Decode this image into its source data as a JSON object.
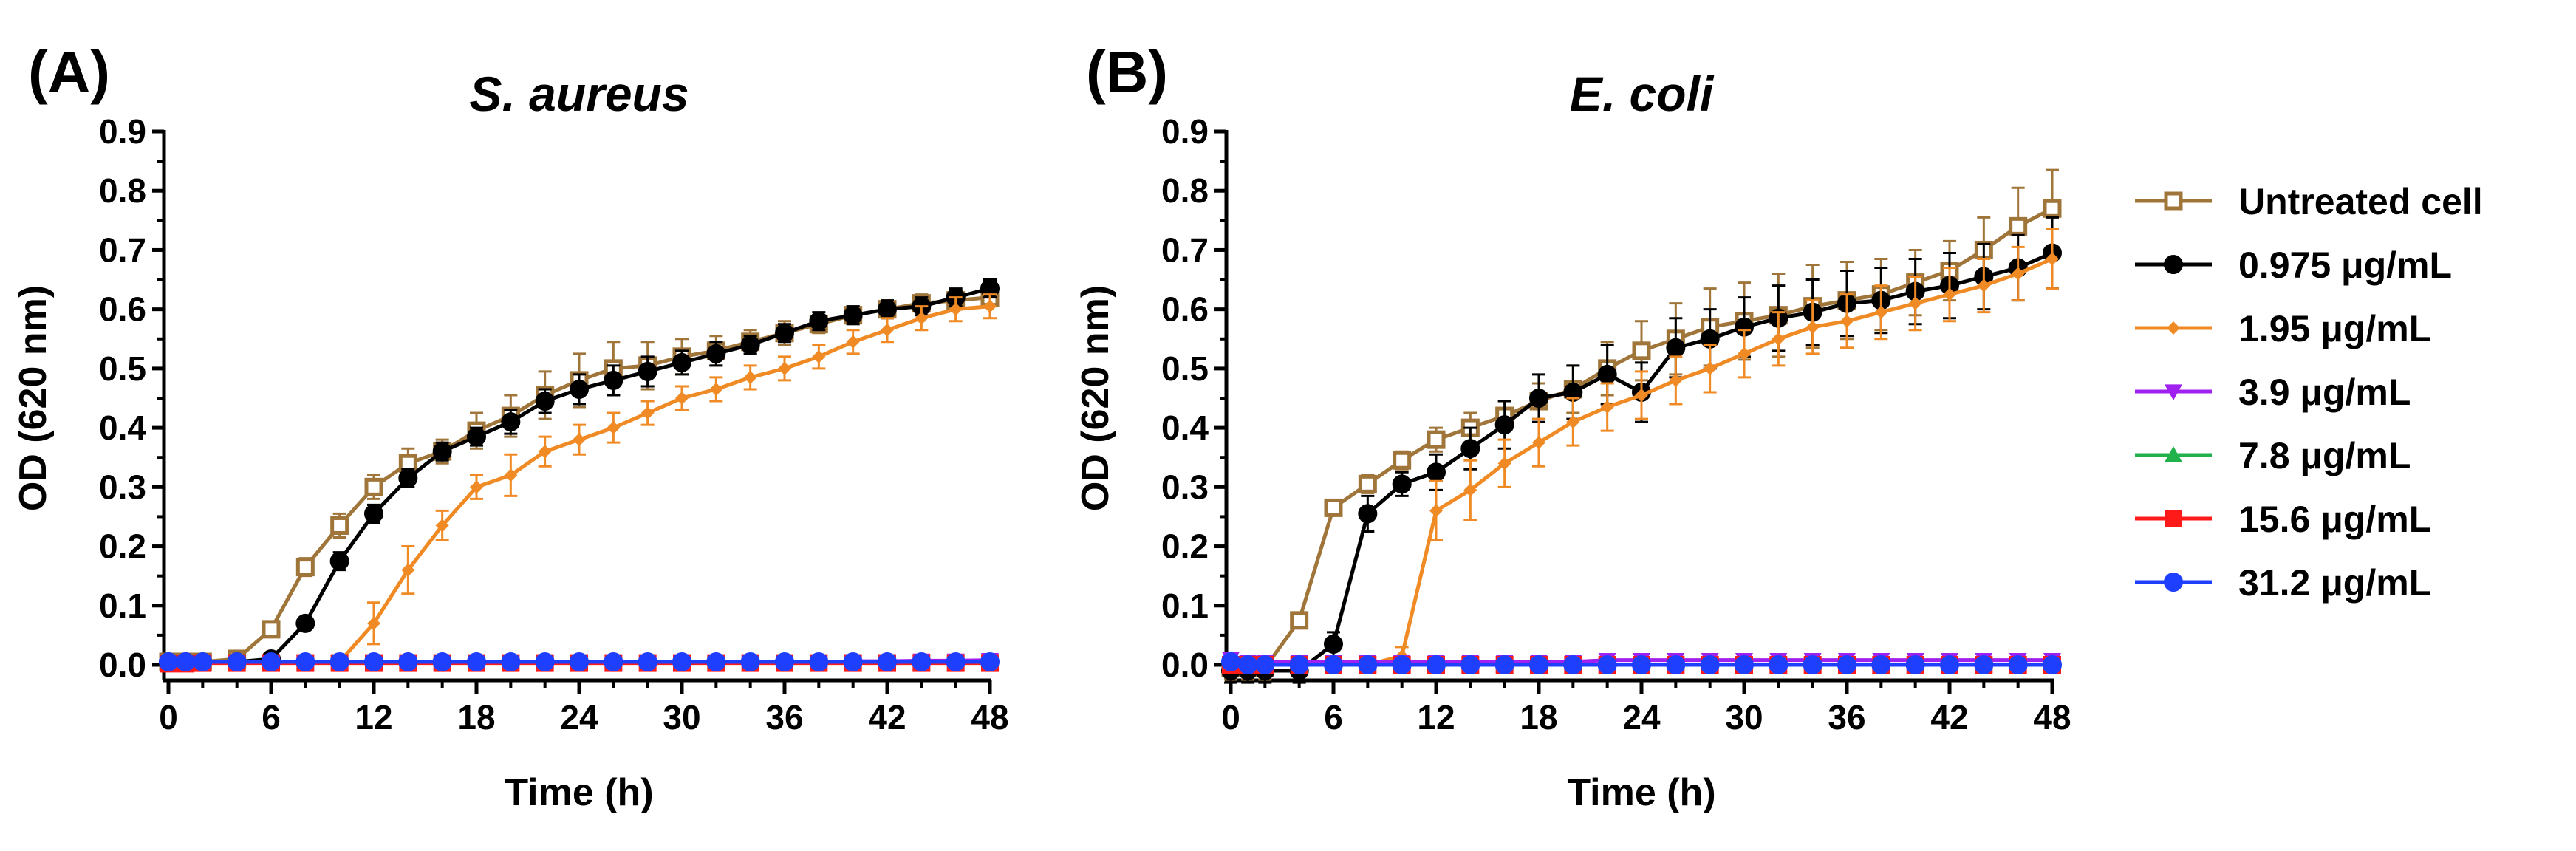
{
  "panels": [
    {
      "letter": "(A)"
    },
    {
      "letter": "(B)"
    }
  ],
  "legend": {
    "entries": [
      "Untreated cell",
      "0.975 μg/mL",
      "1.95 μg/mL",
      "3.9 μg/mL",
      "7.8 μg/mL",
      "15.6 μg/mL",
      "31.2 μg/mL"
    ]
  },
  "chart_data": [
    {
      "type": "line",
      "title": "S. aureus",
      "xlabel": "Time (h)",
      "ylabel": "OD (620 nm)",
      "xlim": [
        0,
        48
      ],
      "ylim": [
        0,
        0.9
      ],
      "xticks": [
        0,
        6,
        12,
        18,
        24,
        30,
        36,
        42,
        48
      ],
      "yticks": [
        0.0,
        0.1,
        0.2,
        0.3,
        0.4,
        0.5,
        0.6,
        0.7,
        0.8,
        0.9
      ],
      "grid": false,
      "legend_position": "right",
      "x": [
        0,
        1,
        2,
        4,
        6,
        8,
        10,
        12,
        14,
        16,
        18,
        20,
        22,
        24,
        26,
        28,
        30,
        32,
        34,
        36,
        38,
        40,
        42,
        44,
        46,
        48
      ],
      "series": [
        {
          "name": "Untreated cell",
          "color": "#A0753A",
          "marker": "square-open",
          "values": [
            0.005,
            0.005,
            0.005,
            0.01,
            0.06,
            0.165,
            0.235,
            0.3,
            0.34,
            0.36,
            0.395,
            0.42,
            0.455,
            0.48,
            0.5,
            0.505,
            0.52,
            0.53,
            0.545,
            0.56,
            0.575,
            0.59,
            0.6,
            0.61,
            0.615,
            0.62
          ],
          "errors": [
            0.003,
            0.003,
            0.003,
            0.005,
            0.01,
            0.015,
            0.02,
            0.02,
            0.025,
            0.02,
            0.03,
            0.035,
            0.04,
            0.045,
            0.045,
            0.04,
            0.03,
            0.025,
            0.02,
            0.02,
            0.015,
            0.015,
            0.015,
            0.015,
            0.015,
            0.015
          ]
        },
        {
          "name": "0.975 μg/mL",
          "color": "#000000",
          "marker": "circle",
          "values": [
            0.005,
            0.005,
            0.005,
            0.005,
            0.01,
            0.07,
            0.175,
            0.255,
            0.315,
            0.36,
            0.385,
            0.41,
            0.445,
            0.465,
            0.48,
            0.495,
            0.51,
            0.525,
            0.54,
            0.56,
            0.58,
            0.59,
            0.6,
            0.605,
            0.62,
            0.635
          ],
          "errors": [
            0.003,
            0.003,
            0.003,
            0.003,
            0.005,
            0.01,
            0.015,
            0.015,
            0.015,
            0.015,
            0.015,
            0.02,
            0.02,
            0.025,
            0.025,
            0.025,
            0.02,
            0.02,
            0.015,
            0.015,
            0.015,
            0.015,
            0.015,
            0.015,
            0.015,
            0.015
          ]
        },
        {
          "name": "1.95 μg/mL",
          "color": "#F08A24",
          "marker": "diamond",
          "values": [
            0.005,
            0.005,
            0.005,
            0.005,
            0.005,
            0.005,
            0.005,
            0.07,
            0.16,
            0.235,
            0.3,
            0.32,
            0.36,
            0.38,
            0.4,
            0.425,
            0.45,
            0.465,
            0.485,
            0.5,
            0.52,
            0.545,
            0.565,
            0.585,
            0.6,
            0.605
          ],
          "errors": [
            0.003,
            0.003,
            0.003,
            0.003,
            0.003,
            0.003,
            0.005,
            0.035,
            0.04,
            0.025,
            0.02,
            0.035,
            0.025,
            0.025,
            0.025,
            0.02,
            0.02,
            0.02,
            0.02,
            0.02,
            0.02,
            0.02,
            0.02,
            0.02,
            0.02,
            0.02
          ]
        },
        {
          "name": "3.9 μg/mL",
          "color": "#A020F0",
          "marker": "triangle-down",
          "values": [
            0.003,
            0.003,
            0.004,
            0.004,
            0.004,
            0.004,
            0.005,
            0.005,
            0.005,
            0.005,
            0.005,
            0.005,
            0.005,
            0.005,
            0.005,
            0.005,
            0.005,
            0.005,
            0.005,
            0.005,
            0.005,
            0.006,
            0.006,
            0.007,
            0.007,
            0.008
          ],
          "errors": [
            0.002,
            0.002,
            0.002,
            0.002,
            0.002,
            0.002,
            0.002,
            0.002,
            0.002,
            0.002,
            0.002,
            0.002,
            0.002,
            0.002,
            0.002,
            0.002,
            0.002,
            0.002,
            0.002,
            0.002,
            0.002,
            0.002,
            0.002,
            0.002,
            0.003,
            0.003
          ]
        },
        {
          "name": "7.8 μg/mL",
          "color": "#22B24C",
          "marker": "triangle-up",
          "values": [
            0.004,
            0.004,
            0.004,
            0.004,
            0.004,
            0.004,
            0.004,
            0.004,
            0.004,
            0.004,
            0.004,
            0.004,
            0.004,
            0.004,
            0.004,
            0.004,
            0.004,
            0.004,
            0.004,
            0.004,
            0.004,
            0.004,
            0.004,
            0.004,
            0.004,
            0.004
          ],
          "errors": [
            0.002,
            0.002,
            0.002,
            0.002,
            0.002,
            0.002,
            0.002,
            0.002,
            0.002,
            0.002,
            0.002,
            0.002,
            0.002,
            0.002,
            0.002,
            0.002,
            0.002,
            0.002,
            0.002,
            0.002,
            0.002,
            0.002,
            0.002,
            0.002,
            0.002,
            0.002
          ]
        },
        {
          "name": "15.6 μg/mL",
          "color": "#FF1A1A",
          "marker": "square",
          "values": [
            0.002,
            0.002,
            0.003,
            0.003,
            0.003,
            0.003,
            0.003,
            0.003,
            0.003,
            0.003,
            0.003,
            0.003,
            0.003,
            0.003,
            0.003,
            0.003,
            0.003,
            0.003,
            0.003,
            0.003,
            0.003,
            0.003,
            0.003,
            0.003,
            0.003,
            0.003
          ],
          "errors": [
            0.002,
            0.002,
            0.002,
            0.002,
            0.002,
            0.002,
            0.002,
            0.002,
            0.002,
            0.002,
            0.002,
            0.002,
            0.002,
            0.002,
            0.002,
            0.002,
            0.002,
            0.002,
            0.002,
            0.002,
            0.002,
            0.002,
            0.002,
            0.002,
            0.002,
            0.002
          ]
        },
        {
          "name": "31.2 μg/mL",
          "color": "#1F3FFF",
          "marker": "circle",
          "values": [
            0.005,
            0.005,
            0.005,
            0.005,
            0.005,
            0.005,
            0.005,
            0.005,
            0.005,
            0.005,
            0.005,
            0.005,
            0.005,
            0.005,
            0.005,
            0.005,
            0.005,
            0.005,
            0.005,
            0.005,
            0.005,
            0.005,
            0.005,
            0.005,
            0.005,
            0.005
          ],
          "errors": [
            0.003,
            0.003,
            0.003,
            0.003,
            0.003,
            0.003,
            0.003,
            0.003,
            0.003,
            0.003,
            0.003,
            0.003,
            0.003,
            0.003,
            0.003,
            0.003,
            0.003,
            0.003,
            0.003,
            0.003,
            0.003,
            0.003,
            0.003,
            0.003,
            0.003,
            0.003
          ]
        }
      ]
    },
    {
      "type": "line",
      "title": "E. coli",
      "xlabel": "Time (h)",
      "ylabel": "OD (620 nm)",
      "xlim": [
        0,
        48
      ],
      "ylim": [
        0,
        0.9
      ],
      "xticks": [
        0,
        6,
        12,
        18,
        24,
        30,
        36,
        42,
        48
      ],
      "yticks": [
        0.0,
        0.1,
        0.2,
        0.3,
        0.4,
        0.5,
        0.6,
        0.7,
        0.8,
        0.9
      ],
      "grid": false,
      "legend_position": "right",
      "x": [
        0,
        1,
        2,
        4,
        6,
        8,
        10,
        12,
        14,
        16,
        18,
        20,
        22,
        24,
        26,
        28,
        30,
        32,
        34,
        36,
        38,
        40,
        42,
        44,
        46,
        48
      ],
      "series": [
        {
          "name": "Untreated cell",
          "color": "#A0753A",
          "marker": "square-open",
          "values": [
            -0.005,
            -0.005,
            -0.005,
            0.075,
            0.265,
            0.305,
            0.345,
            0.38,
            0.4,
            0.42,
            0.445,
            0.465,
            0.5,
            0.53,
            0.55,
            0.57,
            0.58,
            0.59,
            0.605,
            0.615,
            0.625,
            0.645,
            0.665,
            0.7,
            0.74,
            0.77
          ],
          "errors": [
            0.02,
            0.02,
            0.02,
            0.01,
            0.01,
            0.015,
            0.015,
            0.02,
            0.025,
            0.025,
            0.03,
            0.04,
            0.045,
            0.05,
            0.06,
            0.065,
            0.065,
            0.07,
            0.07,
            0.065,
            0.06,
            0.055,
            0.05,
            0.055,
            0.065,
            0.065
          ]
        },
        {
          "name": "0.975 μg/mL",
          "color": "#000000",
          "marker": "circle",
          "values": [
            -0.01,
            -0.01,
            -0.01,
            -0.01,
            0.035,
            0.255,
            0.305,
            0.325,
            0.365,
            0.405,
            0.45,
            0.46,
            0.49,
            0.46,
            0.535,
            0.55,
            0.57,
            0.585,
            0.595,
            0.61,
            0.615,
            0.63,
            0.64,
            0.655,
            0.67,
            0.695
          ],
          "errors": [
            0.02,
            0.02,
            0.02,
            0.02,
            0.02,
            0.03,
            0.02,
            0.03,
            0.035,
            0.04,
            0.04,
            0.045,
            0.05,
            0.05,
            0.05,
            0.05,
            0.05,
            0.055,
            0.055,
            0.055,
            0.055,
            0.055,
            0.055,
            0.055,
            0.055,
            0.06
          ]
        },
        {
          "name": "1.95 μg/mL",
          "color": "#F08A24",
          "marker": "diamond",
          "values": [
            0.0,
            0.0,
            0.0,
            0.0,
            0.0,
            0.0,
            0.015,
            0.26,
            0.295,
            0.34,
            0.375,
            0.41,
            0.435,
            0.455,
            0.48,
            0.5,
            0.525,
            0.55,
            0.57,
            0.58,
            0.595,
            0.61,
            0.625,
            0.64,
            0.66,
            0.685
          ],
          "errors": [
            0.005,
            0.005,
            0.005,
            0.005,
            0.005,
            0.005,
            0.015,
            0.05,
            0.05,
            0.04,
            0.04,
            0.04,
            0.04,
            0.04,
            0.04,
            0.04,
            0.04,
            0.045,
            0.045,
            0.045,
            0.045,
            0.045,
            0.045,
            0.045,
            0.045,
            0.05
          ]
        },
        {
          "name": "3.9 μg/mL",
          "color": "#A020F0",
          "marker": "triangle-down",
          "values": [
            0.01,
            0.005,
            0.005,
            0.005,
            0.005,
            0.005,
            0.005,
            0.005,
            0.005,
            0.005,
            0.005,
            0.005,
            0.008,
            0.008,
            0.008,
            0.008,
            0.008,
            0.008,
            0.008,
            0.008,
            0.008,
            0.008,
            0.008,
            0.008,
            0.008,
            0.008
          ],
          "errors": [
            0.01,
            0.005,
            0.005,
            0.005,
            0.005,
            0.005,
            0.005,
            0.005,
            0.005,
            0.005,
            0.005,
            0.005,
            0.005,
            0.005,
            0.005,
            0.005,
            0.005,
            0.005,
            0.005,
            0.005,
            0.005,
            0.005,
            0.005,
            0.005,
            0.005,
            0.005
          ]
        },
        {
          "name": "7.8 μg/mL",
          "color": "#22B24C",
          "marker": "triangle-up",
          "values": [
            0.0,
            0.0,
            0.0,
            0.0,
            0.0,
            0.0,
            0.0,
            0.0,
            0.0,
            0.0,
            0.0,
            0.0,
            0.0,
            0.0,
            0.0,
            0.0,
            0.0,
            0.0,
            0.0,
            0.0,
            0.0,
            0.0,
            0.0,
            0.0,
            0.0,
            0.0
          ],
          "errors": [
            0.003,
            0.003,
            0.003,
            0.003,
            0.003,
            0.003,
            0.003,
            0.003,
            0.003,
            0.003,
            0.003,
            0.003,
            0.003,
            0.003,
            0.003,
            0.003,
            0.003,
            0.003,
            0.003,
            0.003,
            0.003,
            0.003,
            0.003,
            0.003,
            0.003,
            0.003
          ]
        },
        {
          "name": "15.6 μg/mL",
          "color": "#FF1A1A",
          "marker": "square",
          "values": [
            0.0,
            0.0,
            0.0,
            0.0,
            0.0,
            0.0,
            0.0,
            0.0,
            0.0,
            0.0,
            0.0,
            0.0,
            0.0,
            0.0,
            0.0,
            0.0,
            0.0,
            0.0,
            0.0,
            0.0,
            0.0,
            0.0,
            0.0,
            0.0,
            0.0,
            0.0
          ],
          "errors": [
            0.003,
            0.003,
            0.003,
            0.003,
            0.003,
            0.003,
            0.003,
            0.003,
            0.003,
            0.003,
            0.003,
            0.003,
            0.003,
            0.003,
            0.003,
            0.003,
            0.003,
            0.003,
            0.003,
            0.003,
            0.003,
            0.003,
            0.003,
            0.003,
            0.003,
            0.003
          ]
        },
        {
          "name": "31.2 μg/mL",
          "color": "#1F3FFF",
          "marker": "circle",
          "values": [
            0.005,
            0.0,
            0.0,
            0.0,
            0.0,
            0.0,
            0.0,
            0.0,
            0.0,
            0.0,
            0.0,
            0.0,
            0.0,
            0.0,
            0.0,
            0.0,
            0.0,
            0.0,
            0.0,
            0.0,
            0.0,
            0.0,
            0.0,
            0.0,
            0.0,
            0.0
          ],
          "errors": [
            0.005,
            0.003,
            0.003,
            0.003,
            0.003,
            0.003,
            0.003,
            0.003,
            0.003,
            0.003,
            0.003,
            0.003,
            0.003,
            0.003,
            0.003,
            0.003,
            0.003,
            0.003,
            0.003,
            0.003,
            0.003,
            0.003,
            0.003,
            0.003,
            0.003,
            0.003
          ]
        }
      ]
    }
  ]
}
